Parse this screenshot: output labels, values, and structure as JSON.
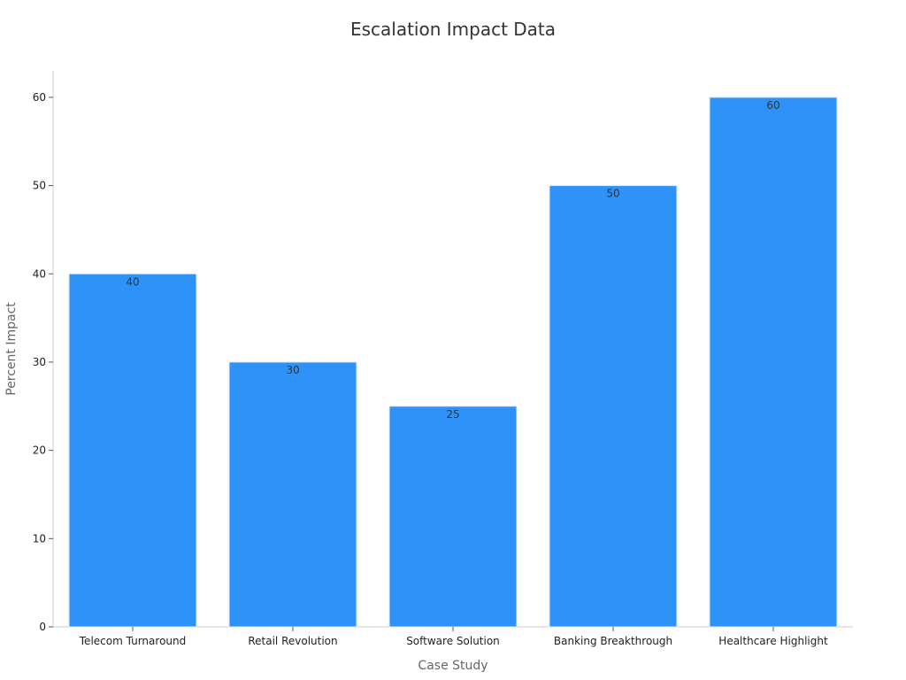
{
  "chart_data": {
    "type": "bar",
    "title": "Escalation Impact Data",
    "xlabel": "Case Study",
    "ylabel": "Percent Impact",
    "categories": [
      "Telecom Turnaround",
      "Retail Revolution",
      "Software Solution",
      "Banking Breakthrough",
      "Healthcare Highlight"
    ],
    "values": [
      40,
      30,
      25,
      50,
      60
    ],
    "ylim": [
      0,
      63
    ],
    "yticks": [
      0,
      10,
      20,
      30,
      40,
      50,
      60
    ],
    "grid": false,
    "legend": "none",
    "colors": {
      "bar": "#2e93f8",
      "bar_edge": "#dfe8f2",
      "axis": "#cccccc"
    }
  }
}
